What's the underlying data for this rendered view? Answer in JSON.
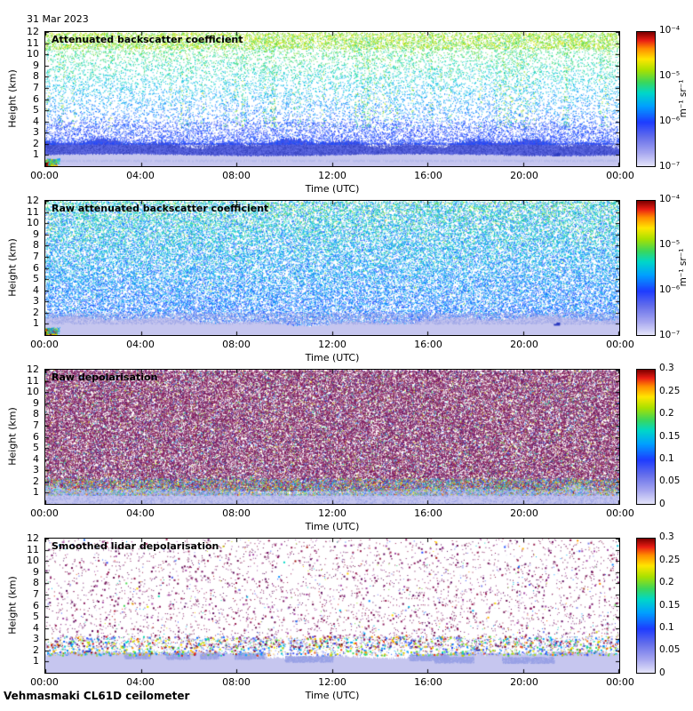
{
  "date_label": "31 Mar 2023",
  "footer_label": "Vehmasmaki CL61D ceilometer",
  "colormap_stops": [
    [
      0.0,
      230,
      230,
      250
    ],
    [
      0.1,
      168,
      168,
      240
    ],
    [
      0.22,
      100,
      110,
      235
    ],
    [
      0.33,
      30,
      60,
      255
    ],
    [
      0.45,
      0,
      160,
      255
    ],
    [
      0.55,
      0,
      215,
      200
    ],
    [
      0.63,
      60,
      215,
      90
    ],
    [
      0.72,
      170,
      225,
      0
    ],
    [
      0.8,
      255,
      230,
      0
    ],
    [
      0.88,
      255,
      140,
      0
    ],
    [
      0.94,
      235,
      30,
      20
    ],
    [
      1.0,
      128,
      0,
      0
    ]
  ],
  "palette": {
    "lavender": "#c6c6ef",
    "pale_blue": "#99a2e6",
    "band_blue": "#515cd8",
    "band_blue_dark": "#3440bb",
    "band_blue_light": "#6a74e6",
    "dark_blue": "#2a3ac0",
    "purples": [
      "#7a1566",
      "#6d1150",
      "#8c1c5e",
      "#5e0e5e",
      "#971f4f"
    ]
  },
  "chart_data": [
    {
      "type": "heatmap",
      "title": "Attenuated backscatter coefficient",
      "xlabel": "Time (UTC)",
      "ylabel": "Height (km)",
      "x_ticks": [
        "00:00",
        "04:00",
        "08:00",
        "12:00",
        "16:00",
        "20:00",
        "00:00"
      ],
      "x_range_hours": [
        0,
        24
      ],
      "y_ticks": [
        1,
        2,
        3,
        4,
        5,
        6,
        7,
        8,
        9,
        10,
        11,
        12
      ],
      "y_range_km": [
        0,
        12
      ],
      "colorbar": {
        "scale": "log",
        "range": [
          "1e-7",
          "1e-4"
        ],
        "unit": "m⁻¹ sr⁻¹",
        "ticks": [
          {
            "label": "10⁻⁴",
            "pos": 1
          },
          {
            "label": "10⁻⁵",
            "pos": 0.6667
          },
          {
            "label": "10⁻⁶",
            "pos": 0.3333
          },
          {
            "label": "10⁻⁷",
            "pos": 0
          }
        ]
      },
      "features": {
        "aerosol_layer": "solid blue backscatter layer below ~2.1 km all day",
        "surface_band": "pale lavender low-signal band below ~1 km",
        "noise": "speckle noise increasing with height: blue (low) to green/yellow (10-12 km)",
        "event": "bright rainbow/red echo at 00:00-00:30 below 0.5 km"
      },
      "render": {
        "kind": "backscatter",
        "seed": 11,
        "speckle_count": 15000,
        "low_count": 5200,
        "top_count": 4000
      }
    },
    {
      "type": "heatmap",
      "title": "Raw attenuated backscatter coefficient",
      "xlabel": "Time (UTC)",
      "ylabel": "Height (km)",
      "x_ticks": [
        "00:00",
        "04:00",
        "08:00",
        "12:00",
        "16:00",
        "20:00",
        "00:00"
      ],
      "x_range_hours": [
        0,
        24
      ],
      "y_ticks": [
        1,
        2,
        3,
        4,
        5,
        6,
        7,
        8,
        9,
        10,
        11,
        12
      ],
      "y_range_km": [
        0,
        12
      ],
      "colorbar": {
        "scale": "log",
        "range": [
          "1e-7",
          "1e-4"
        ],
        "unit": "m⁻¹ sr⁻¹",
        "ticks": [
          {
            "label": "10⁻⁴",
            "pos": 1
          },
          {
            "label": "10⁻⁵",
            "pos": 0.6667
          },
          {
            "label": "10⁻⁶",
            "pos": 0.3333
          },
          {
            "label": "10⁻⁷",
            "pos": 0
          }
        ]
      },
      "features": {
        "noise": "dense blue/green speckle noise over whole profile, greener toward 12 km",
        "surface_band": "pale lavender band below ~1.3 km",
        "event": "bright rainbow/red echo at 00:00-00:30 below 0.5 km"
      },
      "render": {
        "kind": "raw_backscatter",
        "seed": 22,
        "speckle_count": 52000,
        "transition_count": 4000
      }
    },
    {
      "type": "heatmap",
      "title": "Raw depolarisation",
      "xlabel": "Time (UTC)",
      "ylabel": "Height (km)",
      "x_ticks": [
        "00:00",
        "04:00",
        "08:00",
        "12:00",
        "16:00",
        "20:00",
        "00:00"
      ],
      "x_range_hours": [
        0,
        24
      ],
      "y_ticks": [
        1,
        2,
        3,
        4,
        5,
        6,
        7,
        8,
        9,
        10,
        11,
        12
      ],
      "y_range_km": [
        0,
        12
      ],
      "colorbar": {
        "scale": "linear",
        "range": [
          0,
          0.3
        ],
        "unit": "",
        "ticks": [
          {
            "label": "0.3",
            "pos": 1
          },
          {
            "label": "0.25",
            "pos": 0.8333
          },
          {
            "label": "0.2",
            "pos": 0.6667
          },
          {
            "label": "0.15",
            "pos": 0.5
          },
          {
            "label": "0.1",
            "pos": 0.3333
          },
          {
            "label": "0.05",
            "pos": 0.1667
          },
          {
            "label": "0",
            "pos": 0
          }
        ]
      },
      "features": {
        "noise": "dense saturated dark-purple depolarisation noise above ~1.3 km",
        "transition": "multicoloured speckle between ~0.8 and 2 km",
        "surface_band": "pale lavender low-depolarisation band below ~1.2 km"
      },
      "render": {
        "kind": "raw_depol",
        "seed": 33,
        "purple_count": 90000,
        "color_band_count": 9000
      }
    },
    {
      "type": "heatmap",
      "title": "Smoothed lidar depolarisation",
      "xlabel": "Time (UTC)",
      "ylabel": "Height (km)",
      "x_ticks": [
        "00:00",
        "04:00",
        "08:00",
        "12:00",
        "16:00",
        "20:00",
        "00:00"
      ],
      "x_range_hours": [
        0,
        24
      ],
      "y_ticks": [
        1,
        2,
        3,
        4,
        5,
        6,
        7,
        8,
        9,
        10,
        11,
        12
      ],
      "y_range_km": [
        0,
        12
      ],
      "colorbar": {
        "scale": "linear",
        "range": [
          0,
          0.3
        ],
        "unit": "",
        "ticks": [
          {
            "label": "0.3",
            "pos": 1
          },
          {
            "label": "0.25",
            "pos": 0.8333
          },
          {
            "label": "0.2",
            "pos": 0.6667
          },
          {
            "label": "0.15",
            "pos": 0.5
          },
          {
            "label": "0.1",
            "pos": 0.3333
          },
          {
            "label": "0.05",
            "pos": 0.1667
          },
          {
            "label": "0",
            "pos": 0
          }
        ]
      },
      "features": {
        "noise": "sparse purple speckle above ~2.5 km, mostly white background",
        "transition": "multicoloured dots between ~1.6 and 3.2 km",
        "surface_band": "smooth pale lavender band with blue patches below ~1.8 km"
      },
      "render": {
        "kind": "smooth_depol",
        "seed": 44,
        "sparse_count": 4200,
        "color_band_count": 2600
      }
    }
  ]
}
